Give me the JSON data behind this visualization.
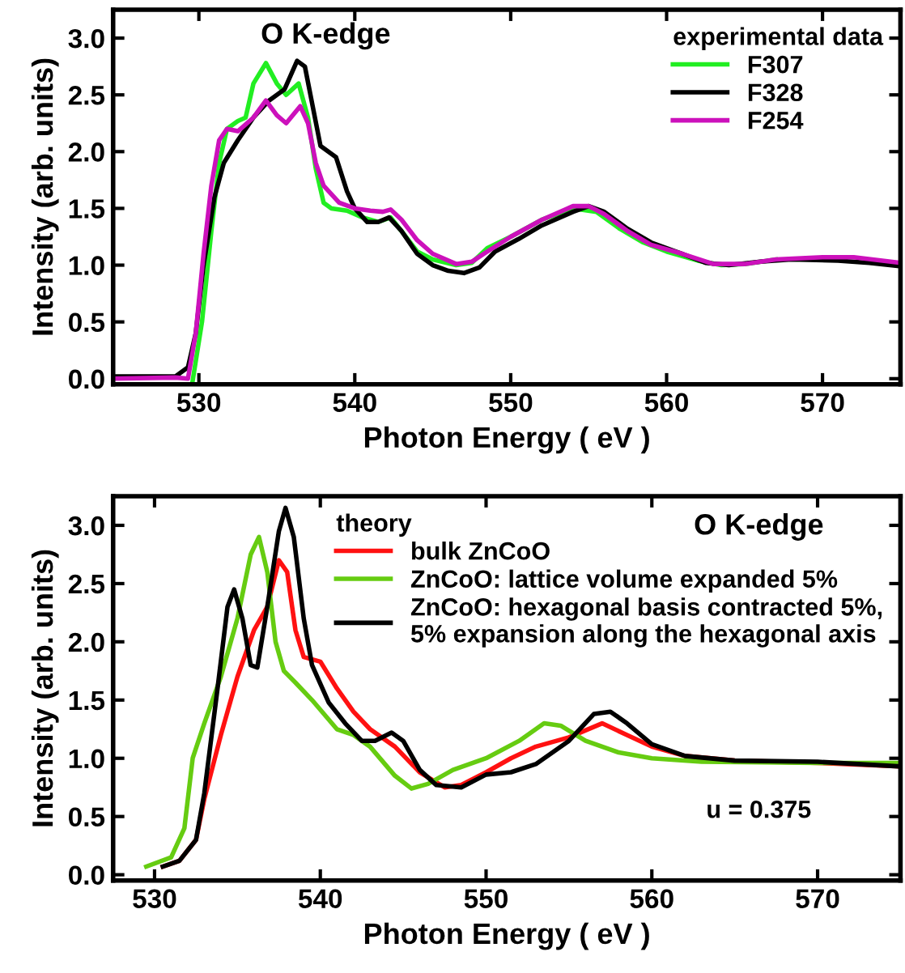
{
  "chart_data": [
    {
      "type": "line",
      "xlabel": "Photon Energy ( eV )",
      "ylabel": "Intensity (arb. units)",
      "annotations": [
        "O K-edge"
      ],
      "legend_title": "experimental data",
      "legend": "top right",
      "grid": false,
      "xlim": [
        524.5,
        575
      ],
      "ylim": [
        -0.05,
        3.25
      ],
      "xticks": [
        530,
        540,
        550,
        560,
        570
      ],
      "yticks": [
        {
          "value": 0,
          "label": "0.0"
        },
        0.5,
        {
          "value": 1,
          "label": "1.0"
        },
        1.5,
        {
          "value": 2,
          "label": "2.0"
        },
        2.5,
        {
          "value": 3,
          "label": "3.0"
        }
      ],
      "series": [
        {
          "name": "F307",
          "color": "#22ee22",
          "x": [
            529.6,
            530.2,
            530.8,
            531.3,
            531.8,
            532.5,
            533,
            533.5,
            534.3,
            535,
            535.6,
            536.4,
            537,
            537.5,
            538,
            538.5,
            539.5,
            540.5,
            541.5,
            542.3,
            543,
            544,
            545,
            546.5,
            547.5,
            548.5,
            550,
            552,
            554,
            555.5,
            557,
            558.5,
            560,
            562,
            563.5,
            565,
            567
          ],
          "values": [
            -0.02,
            0.5,
            1.3,
            1.9,
            2.2,
            2.27,
            2.3,
            2.6,
            2.78,
            2.6,
            2.5,
            2.6,
            2.3,
            1.85,
            1.55,
            1.5,
            1.48,
            1.42,
            1.38,
            1.42,
            1.3,
            1.12,
            1.05,
            1.0,
            1.02,
            1.15,
            1.25,
            1.4,
            1.5,
            1.47,
            1.32,
            1.2,
            1.12,
            1.04,
            1.0,
            1.01,
            1.05
          ]
        },
        {
          "name": "F328",
          "color": "#000000",
          "x": [
            524.5,
            528.5,
            529.3,
            529.8,
            530.3,
            531,
            531.6,
            532.5,
            533.5,
            534.5,
            535.5,
            536.3,
            536.8,
            537.3,
            537.8,
            538.3,
            538.8,
            539.5,
            540,
            540.8,
            541.5,
            542.2,
            543,
            544,
            545,
            546,
            547,
            548,
            549,
            550.5,
            552,
            554,
            555,
            556,
            557.5,
            559,
            561,
            562.5,
            564,
            566,
            568,
            571,
            573,
            575
          ],
          "values": [
            0.02,
            0.02,
            0.1,
            0.4,
            1.0,
            1.6,
            1.9,
            2.1,
            2.3,
            2.45,
            2.55,
            2.8,
            2.75,
            2.4,
            2.05,
            2.0,
            1.95,
            1.65,
            1.5,
            1.38,
            1.38,
            1.42,
            1.3,
            1.1,
            1.0,
            0.95,
            0.93,
            0.98,
            1.12,
            1.23,
            1.35,
            1.47,
            1.52,
            1.47,
            1.32,
            1.2,
            1.1,
            1.02,
            1.0,
            1.03,
            1.05,
            1.04,
            1.02,
            0.99
          ]
        },
        {
          "name": "F254",
          "color": "#cc11bb",
          "x": [
            524.5,
            528.5,
            529.3,
            529.8,
            530.3,
            530.8,
            531.3,
            531.8,
            532.5,
            533.5,
            534.3,
            535,
            535.6,
            536.5,
            537,
            537.5,
            538,
            539,
            540,
            541,
            541.8,
            542.3,
            543,
            544,
            545,
            546.5,
            547.5,
            548.5,
            550,
            552,
            554,
            555,
            556,
            557.5,
            559,
            561,
            563,
            565,
            567,
            570,
            572,
            575
          ],
          "values": [
            0.0,
            0.01,
            0.0,
            0.4,
            1.1,
            1.7,
            2.1,
            2.2,
            2.18,
            2.3,
            2.45,
            2.32,
            2.25,
            2.4,
            2.25,
            1.9,
            1.7,
            1.55,
            1.5,
            1.48,
            1.47,
            1.49,
            1.4,
            1.22,
            1.1,
            1.01,
            1.03,
            1.12,
            1.25,
            1.4,
            1.52,
            1.52,
            1.45,
            1.3,
            1.18,
            1.1,
            1.01,
            1.01,
            1.05,
            1.07,
            1.07,
            1.02
          ]
        }
      ]
    },
    {
      "type": "line",
      "xlabel": "Photon Energy ( eV )",
      "ylabel": "Intensity (arb. units)",
      "annotations": [
        "O K-edge",
        "u = 0.375"
      ],
      "legend_title": "theory",
      "legend": "top right",
      "grid": false,
      "xlim": [
        527.5,
        575
      ],
      "ylim": [
        -0.05,
        3.25
      ],
      "xticks": [
        530,
        540,
        550,
        560,
        570
      ],
      "yticks": [
        {
          "value": 0,
          "label": "0.0"
        },
        0.5,
        {
          "value": 1,
          "label": "1.0"
        },
        1.5,
        {
          "value": 2,
          "label": "2.0"
        },
        2.5,
        {
          "value": 3,
          "label": "3.0"
        }
      ],
      "series": [
        {
          "name": "bulk ZnCoO",
          "color": "#ff1111",
          "x": [
            530.5,
            531.5,
            532.5,
            533,
            534,
            535,
            536,
            536.8,
            537.5,
            538,
            538.5,
            539,
            540,
            541,
            542,
            543,
            544.5,
            546,
            547.5,
            548.5,
            550,
            551.5,
            553,
            555,
            557,
            558.5,
            560,
            562,
            565,
            570,
            575
          ],
          "values": [
            0.07,
            0.12,
            0.3,
            0.65,
            1.2,
            1.7,
            2.1,
            2.3,
            2.7,
            2.6,
            2.1,
            1.87,
            1.83,
            1.6,
            1.4,
            1.25,
            1.1,
            0.88,
            0.75,
            0.77,
            0.88,
            1.0,
            1.1,
            1.18,
            1.3,
            1.2,
            1.1,
            1.02,
            0.98,
            0.96,
            0.93
          ]
        },
        {
          "name": "ZnCoO: lattice volume expanded 5%",
          "color": "#66cc11",
          "x": [
            529.5,
            531,
            531.8,
            532.3,
            533,
            534,
            535,
            535.8,
            536.3,
            536.8,
            537.3,
            537.8,
            538.5,
            539.5,
            541,
            542,
            543,
            544.5,
            545.5,
            546.5,
            548,
            550,
            552,
            553.5,
            554.5,
            556,
            558,
            560,
            563,
            570,
            575
          ],
          "values": [
            0.07,
            0.15,
            0.4,
            1.0,
            1.3,
            1.7,
            2.2,
            2.75,
            2.9,
            2.6,
            2.0,
            1.75,
            1.65,
            1.5,
            1.25,
            1.2,
            1.1,
            0.85,
            0.74,
            0.78,
            0.9,
            1.0,
            1.15,
            1.3,
            1.28,
            1.15,
            1.05,
            1.0,
            0.97,
            0.96,
            0.96
          ]
        },
        {
          "name": "ZnCoO: hexagonal basis contracted 5%,\n5% expansion along the hexagonal axis",
          "color": "#000000",
          "x": [
            530.5,
            531.5,
            532.5,
            533,
            533.8,
            534.4,
            534.8,
            535.3,
            535.8,
            536.2,
            536.8,
            537.5,
            537.9,
            538.4,
            539,
            539.5,
            540.5,
            541.5,
            542.5,
            543.3,
            544.3,
            545,
            546,
            547,
            548.5,
            550,
            551.5,
            553,
            555,
            556.5,
            557.5,
            558.5,
            560,
            562,
            565,
            570,
            575
          ],
          "values": [
            0.07,
            0.12,
            0.3,
            0.7,
            1.6,
            2.3,
            2.45,
            2.2,
            1.8,
            1.78,
            2.3,
            2.95,
            3.15,
            2.9,
            2.2,
            1.8,
            1.48,
            1.3,
            1.15,
            1.15,
            1.22,
            1.15,
            0.9,
            0.77,
            0.75,
            0.86,
            0.88,
            0.95,
            1.15,
            1.38,
            1.4,
            1.3,
            1.12,
            1.02,
            0.98,
            0.97,
            0.93
          ]
        }
      ]
    }
  ]
}
